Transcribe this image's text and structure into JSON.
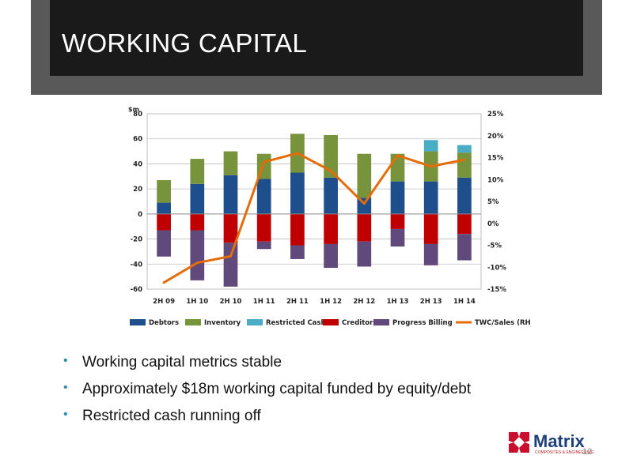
{
  "slide": {
    "title": "WORKING CAPITAL",
    "bullets": [
      "Working capital metrics stable",
      "Approximately $18m working capital funded by equity/debt",
      "Restricted cash running off"
    ],
    "logo_text": "Matrix",
    "logo_tagline": "COMPOSITES & ENGINEERING",
    "page_number": "12",
    "bullet_color": "#2f8fb0"
  },
  "chart_data": {
    "type": "bar",
    "stacked": true,
    "categories": [
      "2H 09",
      "1H 10",
      "2H 10",
      "1H 11",
      "2H 11",
      "1H 12",
      "2H 12",
      "1H 13",
      "2H 13",
      "1H 14"
    ],
    "ylabel": "$m",
    "ylim": [
      -60,
      80
    ],
    "yticks": [
      80,
      60,
      40,
      20,
      0,
      -20,
      -40,
      -60
    ],
    "y2lim": [
      -15,
      25
    ],
    "y2ticks": [
      "25%",
      "20%",
      "15%",
      "10%",
      "5%",
      "0%",
      "-5%",
      "-10%",
      "-15%"
    ],
    "legend_position": "bottom",
    "series": [
      {
        "name": "Debtors",
        "color": "#1f4e8c",
        "axis": "left",
        "values": [
          9,
          24,
          31,
          28,
          33,
          29,
          13,
          26,
          26,
          29
        ]
      },
      {
        "name": "Inventory",
        "color": "#77933c",
        "axis": "left",
        "values": [
          18,
          20,
          19,
          20,
          31,
          34,
          35,
          22,
          24,
          20
        ]
      },
      {
        "name": "Restricted Cash",
        "color": "#4bacc6",
        "axis": "left",
        "values": [
          0,
          0,
          0,
          0,
          0,
          0,
          0,
          0,
          9,
          6
        ]
      },
      {
        "name": "Creditors",
        "color": "#c00000",
        "axis": "left",
        "values": [
          -13,
          -13,
          -23,
          -22,
          -25,
          -24,
          -22,
          -12,
          -24,
          -16
        ]
      },
      {
        "name": "Progress Billing",
        "color": "#604a7b",
        "axis": "left",
        "values": [
          -21,
          -40,
          -35,
          -6,
          -11,
          -19,
          -20,
          -14,
          -17,
          -21
        ]
      },
      {
        "name": "TWC/Sales (RHS)",
        "color": "#e46c0a",
        "axis": "right",
        "type": "line",
        "values": [
          -13.5,
          -9,
          -7.5,
          14,
          16,
          12,
          4.5,
          15.5,
          13,
          14.5
        ]
      }
    ]
  }
}
